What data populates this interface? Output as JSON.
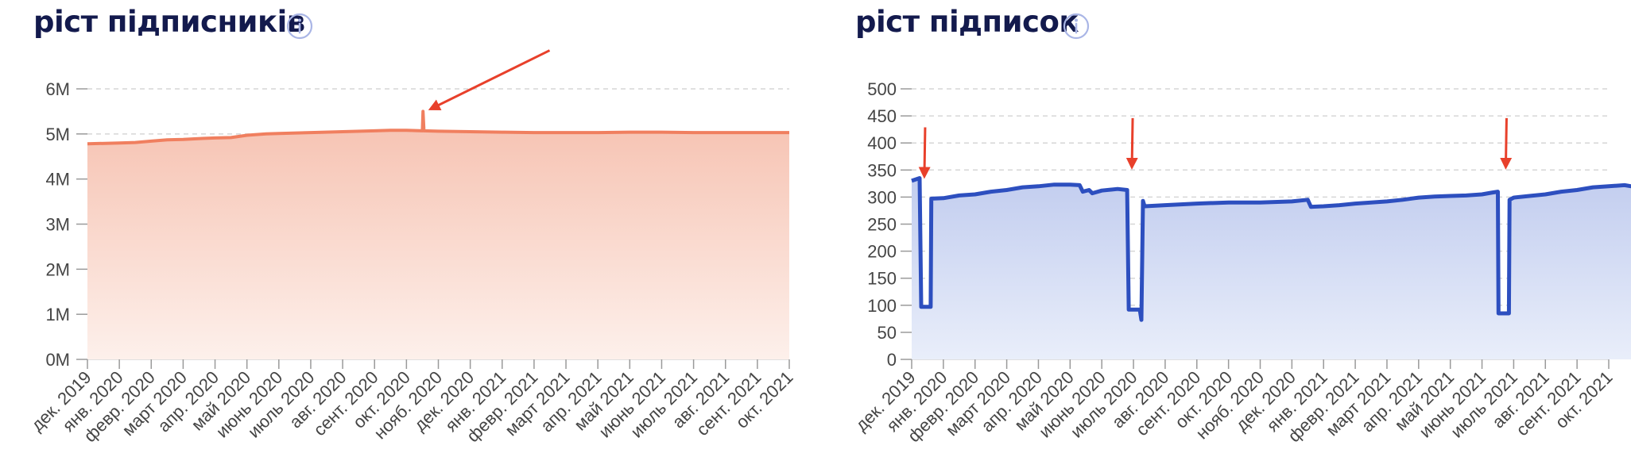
{
  "colors": {
    "title": "#131a4d",
    "info_icon": "#aab6e6",
    "left_line": "#f07f5f",
    "left_fill_top": "#f6c1b0",
    "left_fill_bottom": "#fdf0eb",
    "right_line": "#2d4fbf",
    "right_fill_top": "#c2cdef",
    "right_fill_bottom": "#e9eefa",
    "annotation_arrow": "#e8402b",
    "grid": "#d6d6d6",
    "tick_text": "#454545"
  },
  "icons": [
    "info-icon",
    "annotation-arrow"
  ],
  "chart_data": [
    {
      "type": "area",
      "title": "ріст підписників",
      "xlabel": "",
      "ylabel": "",
      "grid": true,
      "ylim": [
        0,
        6000000
      ],
      "yticks": [
        "0M",
        "1M",
        "2M",
        "3M",
        "4M",
        "5M",
        "6M"
      ],
      "x_tick_labels": [
        "дек. 2019",
        "янв. 2020",
        "февр. 2020",
        "март 2020",
        "апр. 2020",
        "май 2020",
        "июнь 2020",
        "июль 2020",
        "авг. 2020",
        "сент. 2020",
        "окт. 2020",
        "нояб. 2020",
        "дек. 2020",
        "янв. 2021",
        "февр. 2021",
        "март 2021",
        "апр. 2021",
        "май 2021",
        "июнь 2021",
        "июль 2021",
        "авг. 2021",
        "сент. 2021",
        "окт. 2021"
      ],
      "series": [
        {
          "values": [
            [
              0,
              4780000
            ],
            [
              1,
              4800000
            ],
            [
              1.5,
              4810000
            ],
            [
              2,
              4840000
            ],
            [
              2.5,
              4870000
            ],
            [
              3,
              4880000
            ],
            [
              3.6,
              4900000
            ],
            [
              4,
              4910000
            ],
            [
              4.5,
              4920000
            ],
            [
              5,
              4970000
            ],
            [
              5.6,
              5000000
            ],
            [
              6,
              5010000
            ],
            [
              7,
              5030000
            ],
            [
              8,
              5050000
            ],
            [
              9,
              5070000
            ],
            [
              9.5,
              5080000
            ],
            [
              10,
              5080000
            ],
            [
              10.5,
              5070000
            ],
            [
              10.52,
              5500000
            ],
            [
              10.55,
              5070000
            ],
            [
              11,
              5060000
            ],
            [
              12,
              5050000
            ],
            [
              13,
              5040000
            ],
            [
              14,
              5030000
            ],
            [
              15,
              5030000
            ],
            [
              16,
              5030000
            ],
            [
              17,
              5040000
            ],
            [
              18,
              5040000
            ],
            [
              19,
              5030000
            ],
            [
              20,
              5030000
            ],
            [
              21,
              5030000
            ],
            [
              22,
              5030000
            ]
          ]
        }
      ],
      "annotations": [
        {
          "type": "arrow",
          "points_to": [
            10.75,
            5550000
          ]
        }
      ]
    },
    {
      "type": "area",
      "title": "ріст підписок",
      "xlabel": "",
      "ylabel": "",
      "grid": true,
      "ylim": [
        0,
        500
      ],
      "yticks": [
        "0",
        "50",
        "100",
        "150",
        "200",
        "250",
        "300",
        "350",
        "400",
        "450",
        "500"
      ],
      "x_tick_labels": [
        "дек. 2019",
        "янв. 2020",
        "февр. 2020",
        "март 2020",
        "апр. 2020",
        "май 2020",
        "июнь 2020",
        "июль 2020",
        "авг. 2020",
        "сент. 2020",
        "окт. 2020",
        "нояб. 2020",
        "дек. 2020",
        "янв. 2021",
        "февр. 2021",
        "март 2021",
        "апр. 2021",
        "май 2021",
        "июнь 2021",
        "июль 2021",
        "авг. 2021",
        "сент. 2021",
        "окт. 2021"
      ],
      "series": [
        {
          "values": [
            [
              0,
              330
            ],
            [
              0.25,
              335
            ],
            [
              0.3,
              97
            ],
            [
              0.6,
              97
            ],
            [
              0.62,
              297
            ],
            [
              1,
              298
            ],
            [
              1.5,
              303
            ],
            [
              2,
              305
            ],
            [
              2.5,
              310
            ],
            [
              3,
              313
            ],
            [
              3.5,
              318
            ],
            [
              4,
              320
            ],
            [
              4.5,
              323
            ],
            [
              5,
              323
            ],
            [
              5.3,
              322
            ],
            [
              5.4,
              310
            ],
            [
              5.6,
              313
            ],
            [
              5.7,
              307
            ],
            [
              6,
              312
            ],
            [
              6.5,
              315
            ],
            [
              6.8,
              313
            ],
            [
              6.85,
              92
            ],
            [
              7.2,
              92
            ],
            [
              7.25,
              73
            ],
            [
              7.3,
              293
            ],
            [
              7.35,
              283
            ],
            [
              8,
              285
            ],
            [
              9,
              288
            ],
            [
              10,
              290
            ],
            [
              11,
              290
            ],
            [
              12,
              292
            ],
            [
              12.5,
              295
            ],
            [
              12.6,
              282
            ],
            [
              13,
              283
            ],
            [
              13.5,
              285
            ],
            [
              14,
              288
            ],
            [
              15,
              292
            ],
            [
              15.5,
              295
            ],
            [
              16,
              299
            ],
            [
              16.5,
              301
            ],
            [
              17,
              302
            ],
            [
              17.5,
              303
            ],
            [
              18,
              305
            ],
            [
              18.3,
              308
            ],
            [
              18.5,
              310
            ],
            [
              18.52,
              85
            ],
            [
              18.85,
              85
            ],
            [
              18.87,
              295
            ],
            [
              19,
              299
            ],
            [
              19.5,
              302
            ],
            [
              20,
              305
            ],
            [
              20.5,
              310
            ],
            [
              21,
              313
            ],
            [
              21.5,
              318
            ],
            [
              22,
              320
            ],
            [
              22.5,
              322
            ],
            [
              22.9,
              318
            ]
          ]
        }
      ],
      "annotations": [
        {
          "type": "arrow",
          "points_to": [
            0.4,
            338
          ]
        },
        {
          "type": "arrow",
          "points_to": [
            6.95,
            355
          ]
        },
        {
          "type": "arrow",
          "points_to": [
            18.75,
            355
          ]
        }
      ]
    }
  ]
}
